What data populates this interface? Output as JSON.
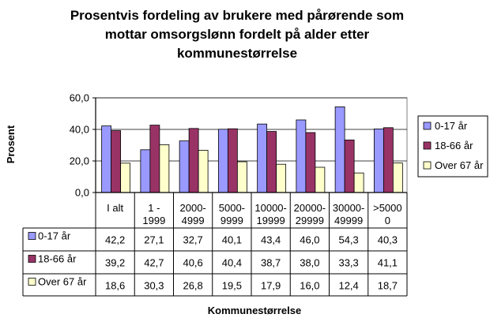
{
  "chart_data": {
    "type": "bar",
    "title_lines": [
      "Prosentvis fordeling av brukere med pårørende som",
      "mottar omsorgslønn fordelt på alder etter",
      "kommunestørrelse"
    ],
    "xlabel": "Kommunestørrelse",
    "ylabel": "Prosent",
    "ylim": [
      0,
      60
    ],
    "yticks": [
      "0,0",
      "20,0",
      "40,0",
      "60,0"
    ],
    "ytick_values": [
      0,
      20,
      40,
      60
    ],
    "grid": true,
    "legend_position": "right",
    "categories": [
      [
        "I alt"
      ],
      [
        "1 -",
        "1999"
      ],
      [
        "2000-",
        "4999"
      ],
      [
        "5000-",
        "9999"
      ],
      [
        "10000-",
        "19999"
      ],
      [
        "20000-",
        "29999"
      ],
      [
        "30000-",
        "49999"
      ],
      [
        ">5000",
        "0"
      ]
    ],
    "series": [
      {
        "name": "0-17 år",
        "color": "#9999ff",
        "values": [
          42.2,
          27.1,
          32.7,
          40.1,
          43.4,
          46.0,
          54.3,
          40.3
        ],
        "labels": [
          "42,2",
          "27,1",
          "32,7",
          "40,1",
          "43,4",
          "46,0",
          "54,3",
          "40,3"
        ]
      },
      {
        "name": "18-66 år",
        "color": "#993366",
        "values": [
          39.2,
          42.7,
          40.6,
          40.4,
          38.7,
          38.0,
          33.3,
          41.1
        ],
        "labels": [
          "39,2",
          "42,7",
          "40,6",
          "40,4",
          "38,7",
          "38,0",
          "33,3",
          "41,1"
        ]
      },
      {
        "name": "Over 67 år",
        "color": "#ffffcc",
        "values": [
          18.6,
          30.3,
          26.8,
          19.5,
          17.9,
          16.0,
          12.4,
          18.7
        ],
        "labels": [
          "18,6",
          "30,3",
          "26,8",
          "19,5",
          "17,9",
          "16,0",
          "12,4",
          "18,7"
        ]
      }
    ]
  }
}
